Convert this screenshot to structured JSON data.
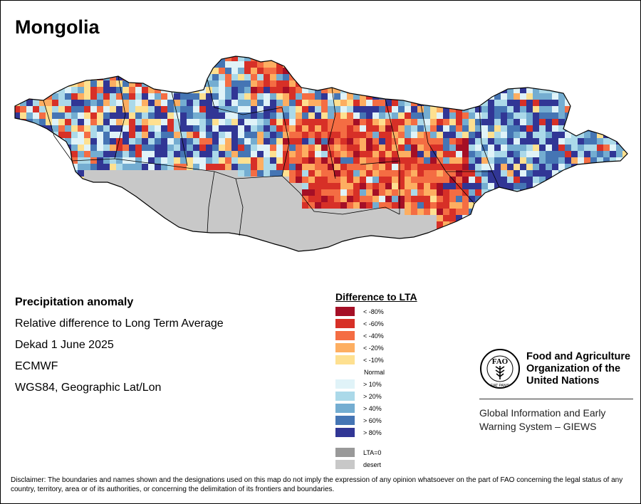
{
  "title": "Mongolia",
  "info": {
    "heading": "Precipitation anomaly",
    "line1": "Relative difference to Long Term Average",
    "line2": "Dekad 1 June 2025",
    "line3": "ECMWF",
    "line4": "WGS84, Geographic Lat/Lon"
  },
  "legend": {
    "title": "Difference to LTA",
    "items": [
      {
        "label": "< -80%",
        "color": "#a50f26"
      },
      {
        "label": "< -60%",
        "color": "#d73027"
      },
      {
        "label": "< -40%",
        "color": "#f46d43"
      },
      {
        "label": "< -20%",
        "color": "#fdae61"
      },
      {
        "label": "< -10%",
        "color": "#fee090"
      },
      {
        "label": "> 10%",
        "color": "#e0f3f8"
      },
      {
        "label": "> 20%",
        "color": "#abd9e9"
      },
      {
        "label": "> 40%",
        "color": "#74add1"
      },
      {
        "label": "> 60%",
        "color": "#4575b4"
      },
      {
        "label": "> 80%",
        "color": "#313695"
      },
      {
        "label": "LTA=0",
        "color": "#999999"
      },
      {
        "label": "desert",
        "color": "#c8c8c8"
      }
    ],
    "normal_label": "Normal"
  },
  "fao": {
    "name_line1": "Food and Agriculture",
    "name_line2": "Organization of the",
    "name_line3": "United Nations",
    "giews_line1": "Global Information and Early",
    "giews_line2": "Warning System – GIEWS",
    "emblem_text": "FAO",
    "emblem_motto": "FIAT PANIS"
  },
  "disclaimer": "Disclaimer: The boundaries and names shown and the designations used on this map do not imply the expression of any opinion whatsoever on the part of FAO concerning the legal status of any country, territory, area or of its authorities, or concerning the delimitation of its frontiers and boundaries.",
  "map_regions": [
    {
      "zone": "west",
      "dominant": [
        "> 80%",
        "< -40%",
        "> 20%",
        "< -60%"
      ]
    },
    {
      "zone": "north-central",
      "dominant": [
        "> 80%",
        "> 60%",
        "< -20%"
      ]
    },
    {
      "zone": "central",
      "dominant": [
        "< -80%",
        "< -60%",
        "< -40%"
      ]
    },
    {
      "zone": "east",
      "dominant": [
        "> 80%",
        "> 40%",
        "> 10%",
        "< -40%"
      ]
    },
    {
      "zone": "south",
      "dominant": [
        "desert"
      ]
    }
  ]
}
